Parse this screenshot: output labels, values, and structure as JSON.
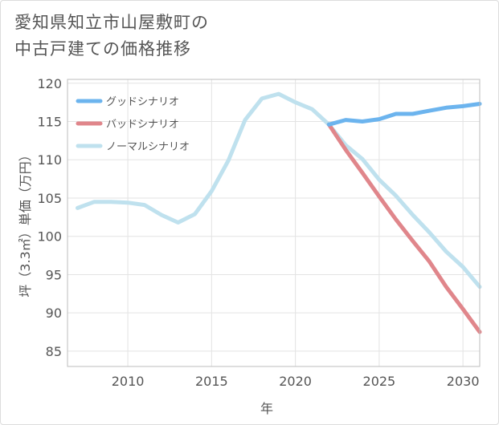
{
  "title_lines": [
    "愛知県知立市山屋敷町の",
    "中古戸建ての価格推移"
  ],
  "chart_data": {
    "type": "line",
    "title": "愛知県知立市山屋敷町の中古戸建ての価格推移",
    "xlabel": "年",
    "ylabel": "坪（3.3㎡）単価（万円）",
    "xlim": [
      2006.4,
      2031.0
    ],
    "ylim": [
      83,
      120.5
    ],
    "xticks": [
      2010,
      2015,
      2020,
      2025,
      2030
    ],
    "yticks": [
      85,
      90,
      95,
      100,
      105,
      110,
      115,
      120
    ],
    "grid": true,
    "legend_position": "top-left",
    "series": [
      {
        "name": "グッドシナリオ",
        "color": "#6cb4ee",
        "x": [
          2022,
          2023,
          2024,
          2025,
          2026,
          2027,
          2028,
          2029,
          2030,
          2031
        ],
        "y": [
          114.6,
          115.2,
          115.0,
          115.3,
          116.0,
          116.0,
          116.4,
          116.8,
          117.0,
          117.3
        ]
      },
      {
        "name": "バッドシナリオ",
        "color": "#e0868b",
        "x": [
          2022,
          2023,
          2024,
          2025,
          2026,
          2027,
          2028,
          2029,
          2030,
          2031
        ],
        "y": [
          114.6,
          111.3,
          108.3,
          105.2,
          102.2,
          99.4,
          96.7,
          93.4,
          90.5,
          87.5
        ]
      },
      {
        "name": "ノーマルシナリオ",
        "color": "#bfe1ee",
        "x": [
          2007,
          2008,
          2009,
          2010,
          2011,
          2012,
          2013,
          2014,
          2015,
          2016,
          2017,
          2018,
          2019,
          2020,
          2021,
          2022,
          2023,
          2024,
          2025,
          2026,
          2027,
          2028,
          2029,
          2030,
          2031
        ],
        "y": [
          103.7,
          104.5,
          104.5,
          104.4,
          104.1,
          102.8,
          101.8,
          102.9,
          105.9,
          109.9,
          115.2,
          118.0,
          118.6,
          117.5,
          116.6,
          114.6,
          111.9,
          110.1,
          107.4,
          105.3,
          102.8,
          100.5,
          98.0,
          96.0,
          93.4
        ]
      }
    ]
  }
}
